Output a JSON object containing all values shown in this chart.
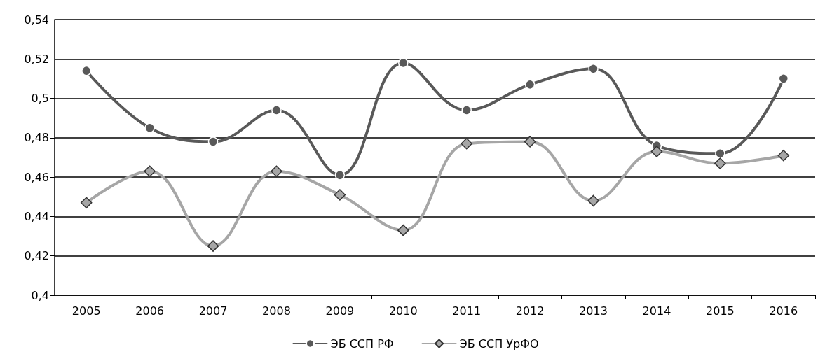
{
  "chart_data": {
    "type": "line",
    "categories": [
      "2005",
      "2006",
      "2007",
      "2008",
      "2009",
      "2010",
      "2011",
      "2012",
      "2013",
      "2014",
      "2015",
      "2016"
    ],
    "series": [
      {
        "name": "ЭБ ССП РФ",
        "color": "#595959",
        "marker": "circle",
        "values": [
          0.514,
          0.485,
          0.478,
          0.494,
          0.461,
          0.518,
          0.494,
          0.507,
          0.515,
          0.476,
          0.472,
          0.51
        ]
      },
      {
        "name": "ЭБ ССП УрФО",
        "color": "#a6a6a6",
        "marker": "diamond",
        "values": [
          0.447,
          0.463,
          0.425,
          0.463,
          0.451,
          0.433,
          0.477,
          0.478,
          0.448,
          0.473,
          0.467,
          0.471
        ]
      }
    ],
    "ylim": [
      0.4,
      0.54
    ],
    "yticks": [
      {
        "value": 0.4,
        "label": "0,4"
      },
      {
        "value": 0.42,
        "label": "0,42"
      },
      {
        "value": 0.44,
        "label": "0,44"
      },
      {
        "value": 0.46,
        "label": "0,46"
      },
      {
        "value": 0.48,
        "label": "0,48"
      },
      {
        "value": 0.5,
        "label": "0,5"
      },
      {
        "value": 0.52,
        "label": "0,52"
      },
      {
        "value": 0.54,
        "label": "0,54"
      }
    ],
    "grid": "y",
    "legend": "bottom"
  }
}
